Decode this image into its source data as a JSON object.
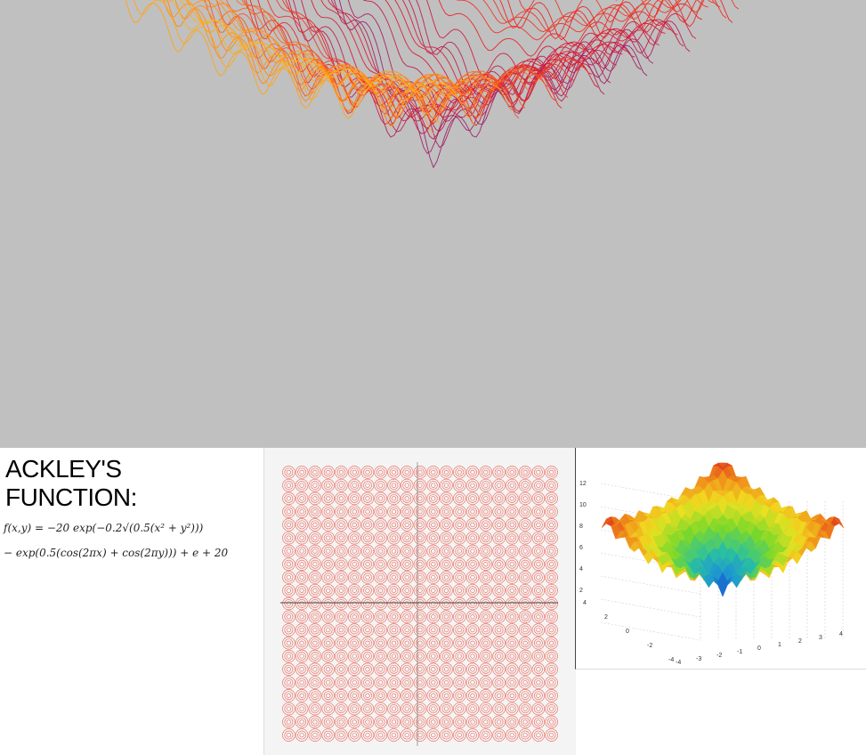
{
  "title": {
    "line1": "ACKLEY'S",
    "line2": "FUNCTION:"
  },
  "formula": {
    "line1": "f(x,y) = −20 exp(−0.2√(0.5(x² + y²)))",
    "line2": "− exp(0.5(cos(2πx) + cos(2πy))) + e + 20"
  },
  "surface_axes": {
    "z_ticks": [
      "12",
      "10",
      "8",
      "6",
      "4",
      "2"
    ],
    "x_ticks": [
      "-4",
      "-3",
      "-2",
      "-1",
      "0",
      "1",
      "2",
      "3",
      "4"
    ],
    "y_ticks": [
      "4",
      "2",
      "0",
      "-2",
      "-4"
    ]
  },
  "colors": {
    "background_top": "#c0c0c0",
    "wire_yellow": "#ffd21a",
    "wire_orange": "#ff8a1a",
    "wire_red": "#e81e2a",
    "wire_purple": "#6a2a9a",
    "wire_blue": "#2a3ac8",
    "contour_red": "#e84a3a"
  }
}
